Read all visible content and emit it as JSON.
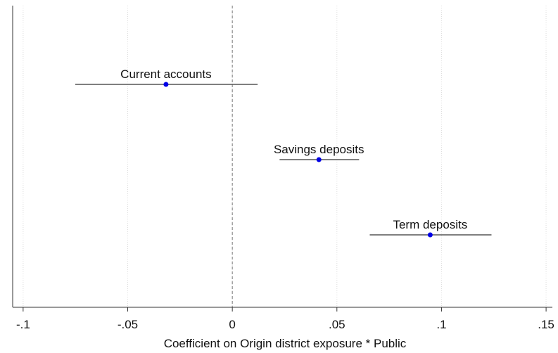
{
  "chart_data": {
    "type": "coefplot",
    "x_label": "Coefficient on Origin district exposure * Public",
    "categories": [
      "Current accounts",
      "Savings deposits",
      "Term deposits"
    ],
    "values": [
      -0.0317,
      0.0414,
      0.0946
    ],
    "lower": [
      -0.0751,
      0.0226,
      0.0657
    ],
    "upper": [
      0.0121,
      0.0606,
      0.1239
    ],
    "color": "#0000e6",
    "ci_color": "#555555",
    "xlim": [
      -0.105,
      0.153
    ],
    "xticks": [
      {
        "value": -0.1,
        "label": "-.1"
      },
      {
        "value": -0.05,
        "label": "-.05"
      },
      0,
      {
        "value": 0.05,
        "label": ".05"
      },
      {
        "value": 0.1,
        "label": ".1"
      },
      {
        "value": 0.15,
        "label": ".15"
      }
    ],
    "reference_line": 0,
    "grid": true
  }
}
